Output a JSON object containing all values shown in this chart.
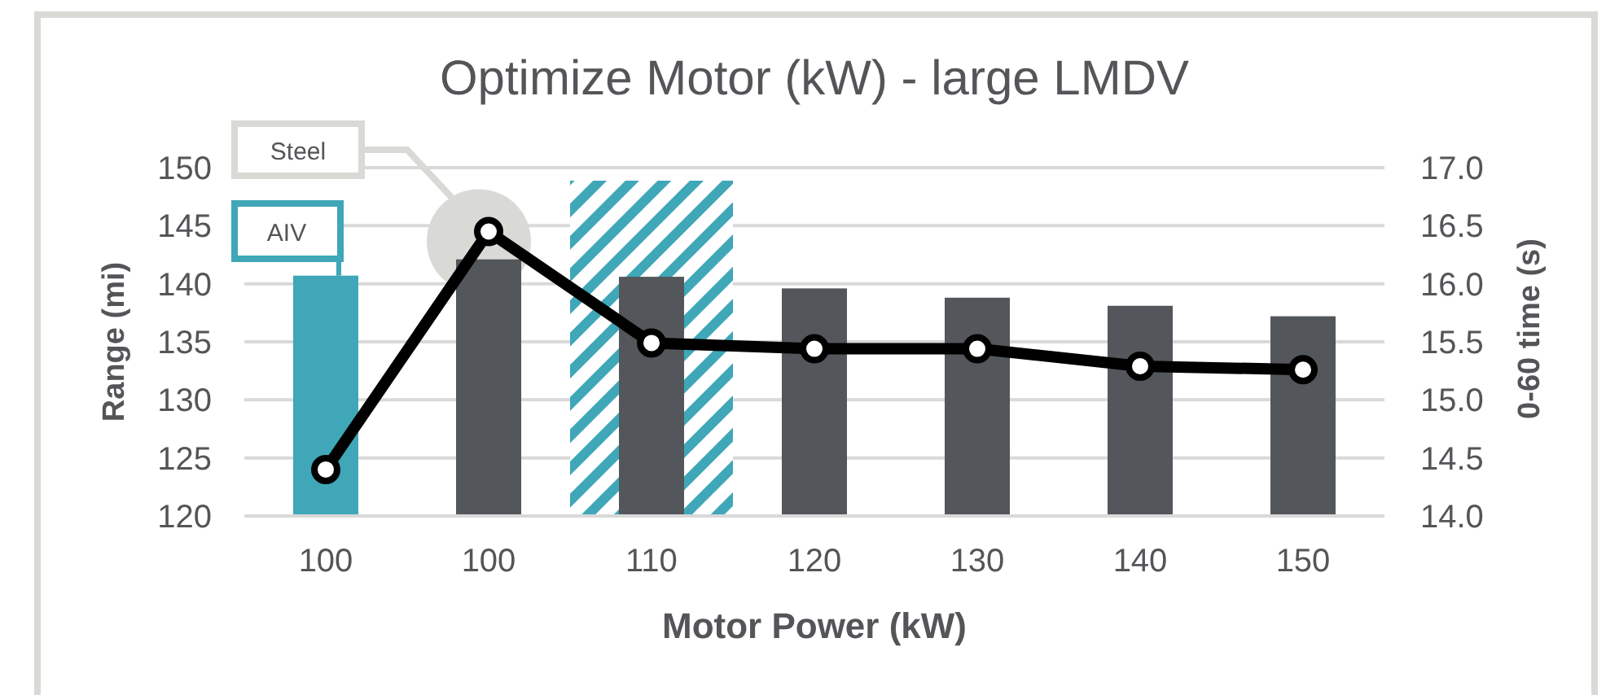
{
  "chart_data": {
    "type": "bar",
    "title": "Optimize Motor (kW) - large LMDV",
    "xlabel": "Motor Power (kW)",
    "ylabel": "Range (mi)",
    "y2label": "0-60 time (s)",
    "categories": [
      "100",
      "100",
      "110",
      "120",
      "130",
      "140",
      "150"
    ],
    "series": [
      {
        "colors": [
          "#3fa7b8",
          "#53565b",
          "#53565b",
          "#53565b",
          "#53565b",
          "#53565b",
          "#53565b"
        ],
        "values": [
          140.7,
          142.1,
          140.6,
          139.6,
          138.8,
          138.1,
          137.2
        ]
      },
      {
        "type": "line",
        "axis": "y2",
        "color": "#000000",
        "marker": "circle",
        "values": [
          14.4,
          16.45,
          15.49,
          15.44,
          15.44,
          15.29,
          15.26
        ]
      }
    ],
    "ylim": [
      120,
      150
    ],
    "yticks": [
      120,
      125,
      130,
      135,
      140,
      145,
      150
    ],
    "y2lim": [
      14,
      17
    ],
    "y2ticks": [
      {
        "value": 14,
        "label": "14.0"
      },
      {
        "value": 14.5,
        "label": "14.5"
      },
      {
        "value": 15,
        "label": "15.0"
      },
      {
        "value": 15.5,
        "label": "15.5"
      },
      {
        "value": 16,
        "label": "16.0"
      },
      {
        "value": 16.5,
        "label": "16.5"
      },
      {
        "value": 17,
        "label": "17.0"
      }
    ],
    "bands": [
      {
        "axis": "x",
        "from": "110",
        "to": "110",
        "color": "#3fa7b8"
      }
    ],
    "annotations": [
      "Steel",
      "AIV"
    ],
    "grid": "y",
    "legend": false
  }
}
